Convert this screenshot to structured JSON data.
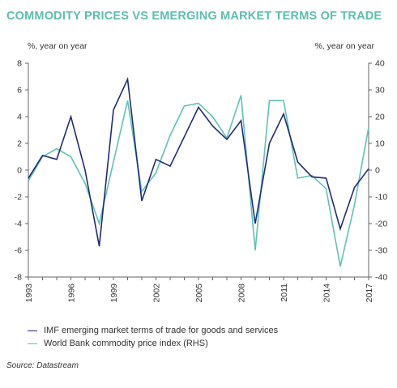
{
  "title": "COMMODITY PRICES VS EMERGING MARKET TERMS OF TRADE",
  "colors": {
    "title": "#5bbdb0",
    "imf": "#1f2a7a",
    "wb": "#5fc2b4",
    "axis": "#666666"
  },
  "source": "Source: Datastream",
  "chart_data": {
    "type": "line",
    "title": "COMMODITY PRICES VS EMERGING MARKET TERMS OF TRADE",
    "ylabel": "%, year on year",
    "y2label": "%, year on year",
    "ylim": [
      -8,
      8
    ],
    "y2lim": [
      -40,
      40
    ],
    "y_ticks": [
      "8",
      "6",
      "4",
      "2",
      "0",
      "-2",
      "-4",
      "-6",
      "-8"
    ],
    "y2_ticks": [
      "40",
      "30",
      "20",
      "10",
      "0",
      "-10",
      "-20",
      "-30",
      "-40"
    ],
    "x_ticks": [
      "1993",
      "1996",
      "1999",
      "2002",
      "2005",
      "2008",
      "2011",
      "2014",
      "2017"
    ],
    "xlim": [
      1993,
      2017
    ],
    "legend_position": "bottom",
    "grid": false,
    "series": [
      {
        "name": "IMF emerging market terms of trade for goods and services",
        "axis": "left",
        "x": [
          1993,
          1994,
          1995,
          1996,
          1997,
          1998,
          1999,
          2000,
          2001,
          2002,
          2003,
          2004,
          2005,
          2006,
          2007,
          2008,
          2009,
          2010,
          2011,
          2012,
          2013,
          2014,
          2015,
          2016,
          2017
        ],
        "values": [
          -0.6,
          1.1,
          0.8,
          4.0,
          0.0,
          -5.7,
          4.5,
          6.8,
          -2.3,
          0.8,
          0.3,
          2.5,
          4.7,
          3.3,
          2.3,
          3.7,
          -4.0,
          2.0,
          4.2,
          0.6,
          -0.5,
          -0.6,
          -4.4,
          -1.3,
          0.1
        ]
      },
      {
        "name": "World Bank commodity price index (RHS)",
        "axis": "right",
        "x": [
          1993,
          1994,
          1995,
          1996,
          1997,
          1998,
          1999,
          2000,
          2001,
          2002,
          2003,
          2004,
          2005,
          2006,
          2007,
          2008,
          2009,
          2010,
          2011,
          2012,
          2013,
          2014,
          2015,
          2016,
          2017
        ],
        "values": [
          -4,
          5,
          8,
          5,
          -5,
          -20,
          3,
          26,
          -8,
          -1,
          13,
          24,
          25,
          20,
          12,
          28,
          -30,
          26,
          26,
          -3,
          -2,
          -7,
          -36,
          -13,
          16
        ]
      }
    ]
  }
}
